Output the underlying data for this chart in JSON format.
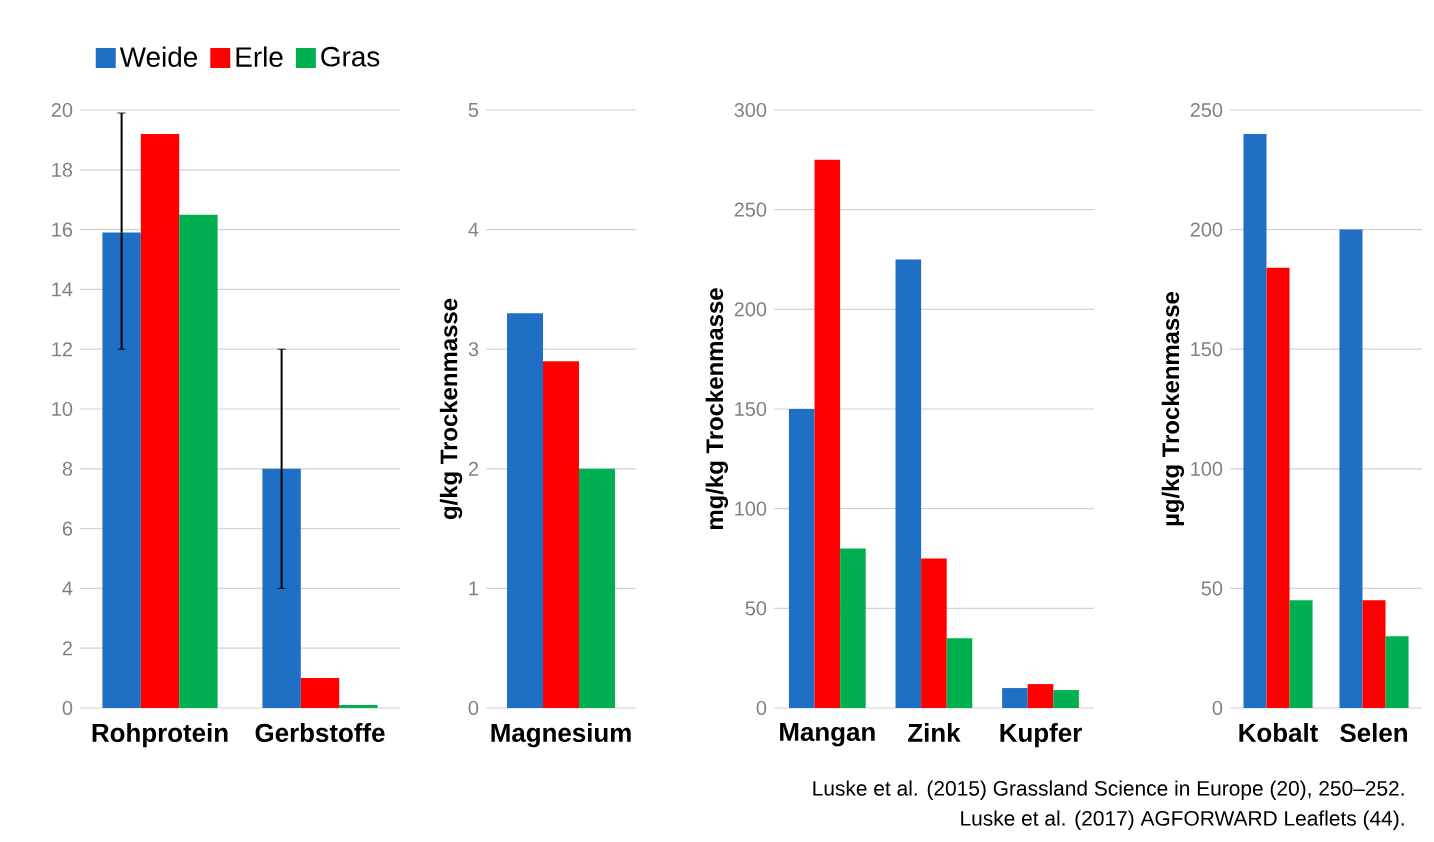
{
  "chart_data": [
    {
      "type": "bar",
      "categories": [
        "Rohprotein",
        "Gerbstoffe"
      ],
      "ylim": [
        0,
        20
      ],
      "yticks": [
        0,
        2,
        4,
        6,
        8,
        10,
        12,
        14,
        16,
        18,
        20
      ],
      "grid": "y",
      "legend": "top",
      "series": [
        {
          "name": "Weide",
          "color": "#1f6fc5",
          "values": [
            15.9,
            8
          ],
          "errors": [
            [
              12,
              19.9
            ],
            [
              4,
              12
            ]
          ]
        },
        {
          "name": "Erle",
          "color": "#ff0000",
          "values": [
            19.2,
            1
          ]
        },
        {
          "name": "Gras",
          "color": "#00b050",
          "values": [
            16.5,
            0.1
          ]
        }
      ]
    },
    {
      "type": "bar",
      "categories": [
        "Magnesium"
      ],
      "ylabel": "g/kg  Trockenmasse",
      "ylim": [
        0,
        5
      ],
      "yticks": [
        0,
        1,
        2,
        3,
        4,
        5
      ],
      "grid": "y",
      "series": [
        {
          "color": "#1f6fc5",
          "values": [
            3.3
          ]
        },
        {
          "color": "#ff0000",
          "values": [
            2.9
          ]
        },
        {
          "color": "#00b050",
          "values": [
            2.0
          ]
        }
      ]
    },
    {
      "type": "bar",
      "categories": [
        "Mangan",
        "Zink",
        "Kupfer"
      ],
      "ylabel": "mg/kg  Trockenmasse",
      "ylim": [
        0,
        300
      ],
      "yticks": [
        0,
        50,
        100,
        150,
        200,
        250,
        300
      ],
      "grid": "y",
      "series": [
        {
          "color": "#1f6fc5",
          "values": [
            150,
            225,
            10
          ]
        },
        {
          "color": "#ff0000",
          "values": [
            275,
            75,
            12
          ]
        },
        {
          "color": "#00b050",
          "values": [
            80,
            35,
            9
          ]
        }
      ]
    },
    {
      "type": "bar",
      "categories": [
        "Kobalt",
        "Selen"
      ],
      "ylabel": "µg/kg  Trockenmasse",
      "ylim": [
        0,
        250
      ],
      "yticks": [
        0,
        50,
        100,
        150,
        200,
        250
      ],
      "grid": "y",
      "annotations": [
        "Luske et al. (2015) Grassland Science in Europe (20), 250–252.",
        "Luske et al. (2017) AGFORWARD Leaflets (44)."
      ],
      "series": [
        {
          "color": "#1f6fc5",
          "values": [
            240,
            200
          ]
        },
        {
          "color": "#ff0000",
          "values": [
            184,
            45
          ]
        },
        {
          "color": "#00b050",
          "values": [
            45,
            30
          ]
        }
      ]
    }
  ]
}
